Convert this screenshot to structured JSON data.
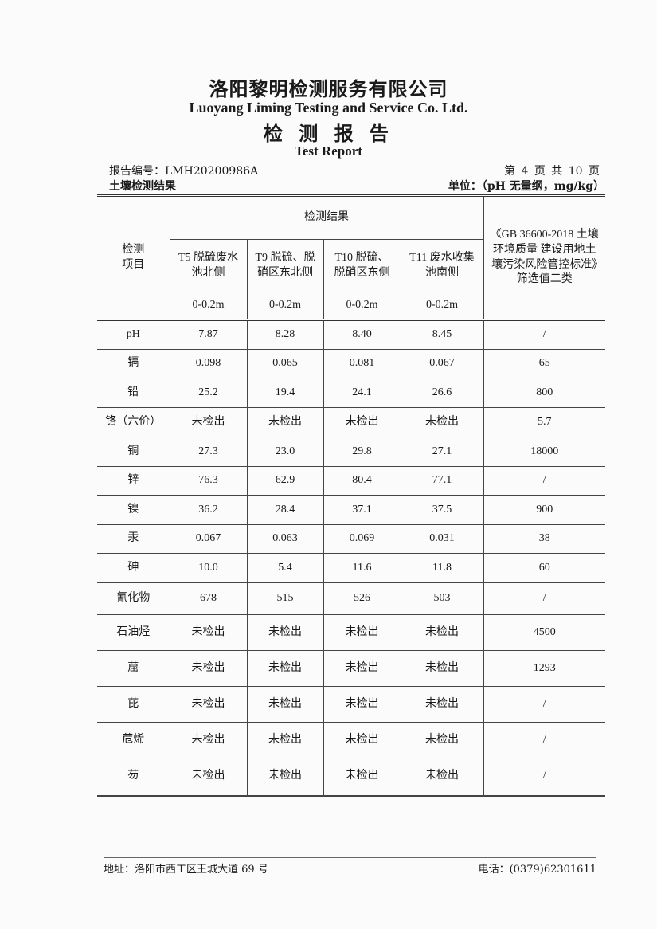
{
  "header": {
    "company_cn": "洛阳黎明检测服务有限公司",
    "company_en": "Luoyang Liming Testing and Service Co. Ltd.",
    "report_cn": "检 测 报 告",
    "report_en": "Test Report",
    "report_no": "报告编号：LMH20200986A",
    "page_info": "第 4 页 共 10 页",
    "section_title": "土壤检测结果",
    "unit": "单位：（pH 无量纲，mg/kg）"
  },
  "table": {
    "item_header": "检测项目",
    "results_header": "检测结果",
    "standard_header": "《GB 36600-2018 土壤环境质量 建设用地土壤污染风险管控标准》筛选值二类",
    "sites": [
      "T5 脱硫废水池北侧",
      "T9 脱硫、脱硝区东北侧",
      "T10 脱硫、脱硝区东侧",
      "T11 废水收集池南侧"
    ],
    "depths": [
      "0-0.2m",
      "0-0.2m",
      "0-0.2m",
      "0-0.2m"
    ],
    "rows": [
      {
        "item": "pH",
        "values": [
          "7.87",
          "8.28",
          "8.40",
          "8.45"
        ],
        "standard": "/"
      },
      {
        "item": "镉",
        "values": [
          "0.098",
          "0.065",
          "0.081",
          "0.067"
        ],
        "standard": "65"
      },
      {
        "item": "铅",
        "values": [
          "25.2",
          "19.4",
          "24.1",
          "26.6"
        ],
        "standard": "800"
      },
      {
        "item": "铬（六价）",
        "values": [
          "未检出",
          "未检出",
          "未检出",
          "未检出"
        ],
        "standard": "5.7"
      },
      {
        "item": "铜",
        "values": [
          "27.3",
          "23.0",
          "29.8",
          "27.1"
        ],
        "standard": "18000"
      },
      {
        "item": "锌",
        "values": [
          "76.3",
          "62.9",
          "80.4",
          "77.1"
        ],
        "standard": "/"
      },
      {
        "item": "镍",
        "values": [
          "36.2",
          "28.4",
          "37.1",
          "37.5"
        ],
        "standard": "900"
      },
      {
        "item": "汞",
        "values": [
          "0.067",
          "0.063",
          "0.069",
          "0.031"
        ],
        "standard": "38"
      },
      {
        "item": "砷",
        "values": [
          "10.0",
          "5.4",
          "11.6",
          "11.8"
        ],
        "standard": "60"
      },
      {
        "item": "氰化物",
        "values": [
          "678",
          "515",
          "526",
          "503"
        ],
        "standard": "/"
      },
      {
        "item": "石油烃",
        "values": [
          "未检出",
          "未检出",
          "未检出",
          "未检出"
        ],
        "standard": "4500"
      },
      {
        "item": "䓛",
        "values": [
          "未检出",
          "未检出",
          "未检出",
          "未检出"
        ],
        "standard": "1293"
      },
      {
        "item": "芘",
        "values": [
          "未检出",
          "未检出",
          "未检出",
          "未检出"
        ],
        "standard": "/"
      },
      {
        "item": "苊烯",
        "values": [
          "未检出",
          "未检出",
          "未检出",
          "未检出"
        ],
        "standard": "/"
      },
      {
        "item": "芴",
        "values": [
          "未检出",
          "未检出",
          "未检出",
          "未检出"
        ],
        "standard": "/"
      }
    ]
  },
  "footer": {
    "address": "地址：洛阳市西工区王城大道 69 号",
    "phone": "电话：(0379)62301611"
  }
}
